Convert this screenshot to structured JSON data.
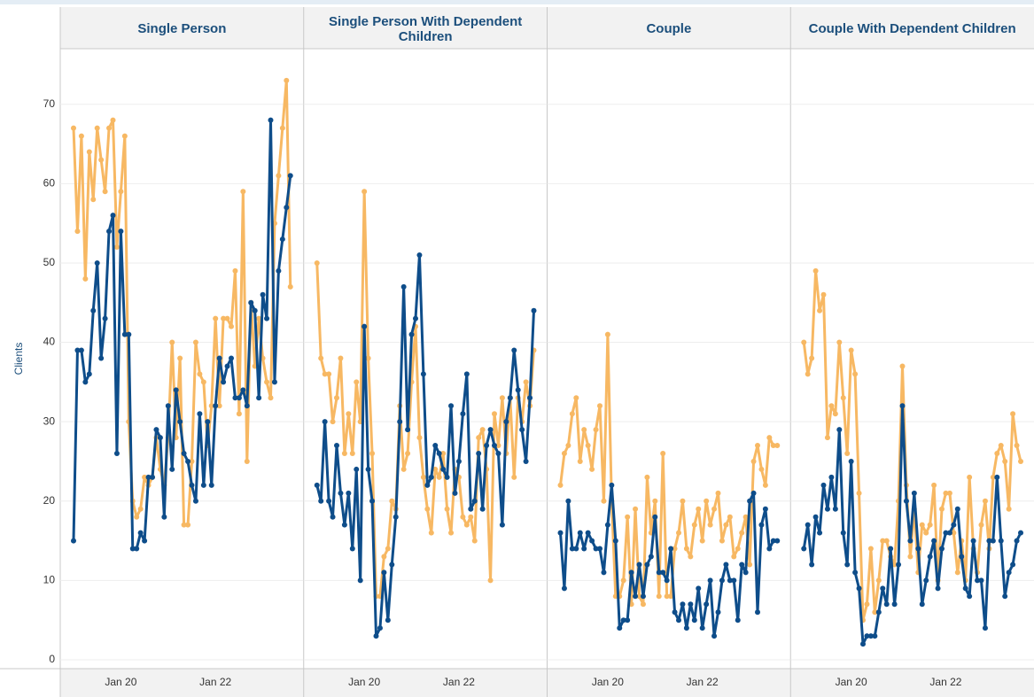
{
  "chart_data": [
    {
      "type": "line",
      "title": "Single Person",
      "y_label": "Clients",
      "ylim": [
        0,
        77
      ],
      "yticks": [
        0,
        10,
        20,
        30,
        40,
        50,
        60,
        70
      ],
      "grid": true,
      "categories": [
        null,
        null,
        null,
        null,
        null,
        null,
        null,
        null,
        null,
        null,
        null,
        null,
        "Jan 20",
        null,
        null,
        null,
        null,
        null,
        null,
        null,
        null,
        null,
        null,
        null,
        null,
        null,
        null,
        null,
        null,
        null,
        null,
        null,
        null,
        null,
        null,
        null,
        "Jan 22",
        null,
        null,
        null,
        null,
        null,
        null,
        null,
        null,
        null,
        null,
        null,
        null,
        null,
        null,
        null,
        null,
        null,
        null,
        null
      ],
      "series": [
        {
          "color": "#f7b863",
          "values": [
            67,
            54,
            66,
            48,
            64,
            58,
            67,
            63,
            59,
            67,
            68,
            52,
            59,
            66,
            30,
            20,
            18,
            19,
            23,
            22,
            23,
            28,
            24,
            22,
            28,
            40,
            28,
            38,
            17,
            17,
            25,
            40,
            36,
            35,
            27,
            32,
            43,
            32,
            43,
            43,
            42,
            49,
            31,
            59,
            25,
            45,
            37,
            43,
            38,
            35,
            33,
            55,
            61,
            67,
            73,
            47
          ]
        },
        {
          "color": "#0e4d8a",
          "values": [
            15,
            39,
            39,
            35,
            36,
            44,
            50,
            38,
            43,
            54,
            56,
            26,
            54,
            41,
            41,
            14,
            14,
            16,
            15,
            23,
            23,
            29,
            28,
            18,
            32,
            24,
            34,
            30,
            26,
            25,
            22,
            20,
            31,
            22,
            30,
            22,
            32,
            38,
            35,
            37,
            38,
            33,
            33,
            34,
            32,
            45,
            44,
            33,
            46,
            43,
            68,
            35,
            49,
            53,
            57,
            61
          ]
        }
      ]
    },
    {
      "type": "line",
      "title": "Single Person With Dependent Children",
      "ylim": [
        0,
        77
      ],
      "categories": [
        null,
        null,
        null,
        null,
        null,
        null,
        null,
        null,
        null,
        null,
        null,
        null,
        "Jan 20",
        null,
        null,
        null,
        null,
        null,
        null,
        null,
        null,
        null,
        null,
        null,
        null,
        null,
        null,
        null,
        null,
        null,
        null,
        null,
        null,
        null,
        null,
        null,
        "Jan 22",
        null,
        null,
        null,
        null,
        null,
        null,
        null,
        null,
        null,
        null,
        null,
        null,
        null,
        null,
        null,
        null,
        null,
        null,
        null
      ],
      "series": [
        {
          "color": "#f7b863",
          "values": [
            50,
            38,
            36,
            36,
            30,
            33,
            38,
            26,
            31,
            26,
            35,
            30,
            59,
            38,
            26,
            8,
            8,
            13,
            14,
            20,
            19,
            32,
            24,
            26,
            35,
            42,
            28,
            23,
            19,
            16,
            24,
            23,
            26,
            19,
            16,
            24,
            23,
            18,
            17,
            18,
            15,
            28,
            29,
            24,
            10,
            31,
            27,
            33,
            26,
            33,
            23,
            33,
            30,
            35,
            32,
            39
          ]
        },
        {
          "color": "#0e4d8a",
          "values": [
            22,
            20,
            30,
            20,
            18,
            27,
            21,
            17,
            21,
            14,
            24,
            10,
            42,
            24,
            20,
            3,
            4,
            11,
            5,
            12,
            18,
            30,
            47,
            29,
            41,
            43,
            51,
            36,
            22,
            23,
            27,
            26,
            24,
            23,
            32,
            21,
            25,
            31,
            36,
            19,
            20,
            26,
            19,
            27,
            29,
            27,
            26,
            17,
            30,
            33,
            39,
            34,
            29,
            25,
            33,
            44
          ]
        }
      ]
    },
    {
      "type": "line",
      "title": "Couple",
      "ylim": [
        0,
        77
      ],
      "categories": [
        null,
        null,
        null,
        null,
        null,
        null,
        null,
        null,
        null,
        null,
        null,
        null,
        "Jan 20",
        null,
        null,
        null,
        null,
        null,
        null,
        null,
        null,
        null,
        null,
        null,
        null,
        null,
        null,
        null,
        null,
        null,
        null,
        null,
        null,
        null,
        null,
        null,
        "Jan 22",
        null,
        null,
        null,
        null,
        null,
        null,
        null,
        null,
        null,
        null,
        null,
        null,
        null,
        null,
        null,
        null,
        null,
        null,
        null
      ],
      "series": [
        {
          "color": "#f7b863",
          "values": [
            22,
            26,
            27,
            31,
            33,
            25,
            29,
            27,
            24,
            29,
            32,
            20,
            41,
            20,
            8,
            8,
            10,
            18,
            7,
            19,
            8,
            7,
            23,
            16,
            20,
            8,
            26,
            8,
            8,
            14,
            16,
            20,
            14,
            13,
            17,
            19,
            15,
            20,
            17,
            19,
            21,
            15,
            17,
            18,
            13,
            14,
            16,
            18,
            12,
            25,
            27,
            24,
            22,
            28,
            27,
            27
          ]
        },
        {
          "color": "#0e4d8a",
          "values": [
            16,
            9,
            20,
            14,
            14,
            16,
            14,
            16,
            15,
            14,
            14,
            11,
            17,
            22,
            15,
            4,
            5,
            5,
            11,
            8,
            12,
            8,
            12,
            13,
            18,
            11,
            11,
            10,
            14,
            6,
            5,
            7,
            4,
            7,
            5,
            9,
            4,
            7,
            10,
            3,
            6,
            10,
            12,
            10,
            10,
            5,
            12,
            11,
            20,
            21,
            6,
            17,
            19,
            14,
            15,
            15
          ]
        }
      ]
    },
    {
      "type": "line",
      "title": "Couple With Dependent Children",
      "ylim": [
        0,
        77
      ],
      "categories": [
        null,
        null,
        null,
        null,
        null,
        null,
        null,
        null,
        null,
        null,
        null,
        null,
        "Jan 20",
        null,
        null,
        null,
        null,
        null,
        null,
        null,
        null,
        null,
        null,
        null,
        null,
        null,
        null,
        null,
        null,
        null,
        null,
        null,
        null,
        null,
        null,
        null,
        "Jan 22",
        null,
        null,
        null,
        null,
        null,
        null,
        null,
        null,
        null,
        null,
        null,
        null,
        null,
        null,
        null,
        null,
        null,
        null,
        null
      ],
      "series": [
        {
          "color": "#f7b863",
          "values": [
            40,
            36,
            38,
            49,
            44,
            46,
            28,
            32,
            31,
            40,
            33,
            26,
            39,
            36,
            21,
            5,
            7,
            14,
            6,
            10,
            15,
            15,
            13,
            12,
            20,
            37,
            22,
            13,
            19,
            11,
            17,
            16,
            17,
            22,
            10,
            19,
            21,
            21,
            16,
            11,
            15,
            10,
            23,
            14,
            11,
            17,
            20,
            14,
            23,
            26,
            27,
            25,
            19,
            31,
            27,
            25
          ]
        },
        {
          "color": "#0e4d8a",
          "values": [
            14,
            17,
            12,
            18,
            16,
            22,
            19,
            23,
            19,
            29,
            16,
            12,
            25,
            11,
            9,
            2,
            3,
            3,
            3,
            6,
            9,
            7,
            14,
            7,
            12,
            32,
            20,
            15,
            21,
            14,
            7,
            10,
            13,
            15,
            9,
            14,
            16,
            16,
            17,
            19,
            13,
            9,
            8,
            15,
            10,
            10,
            4,
            15,
            15,
            23,
            15,
            8,
            11,
            12,
            15,
            16
          ]
        }
      ]
    }
  ]
}
